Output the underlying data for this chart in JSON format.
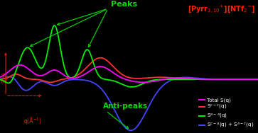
{
  "bg_color": "#000000",
  "title_color": "#ff2200",
  "peaks_label_color": "#00dd00",
  "anti_peaks_label_color": "#00dd00",
  "axis_label_color": "#ff2200",
  "legend": [
    {
      "label": "Total S(q)",
      "color": "#ff00ff"
    },
    {
      "label": "S$^{c-c}$(q)",
      "color": "#ff3030"
    },
    {
      "label": "S$^{a-a}$(q)",
      "color": "#00ee00"
    },
    {
      "label": "S$^{c-a}$(q) + S$^{a-c}$(q)",
      "color": "#4444ff"
    }
  ],
  "xlim": [
    0.0,
    4.5
  ],
  "ylim": [
    -1.05,
    1.55
  ]
}
